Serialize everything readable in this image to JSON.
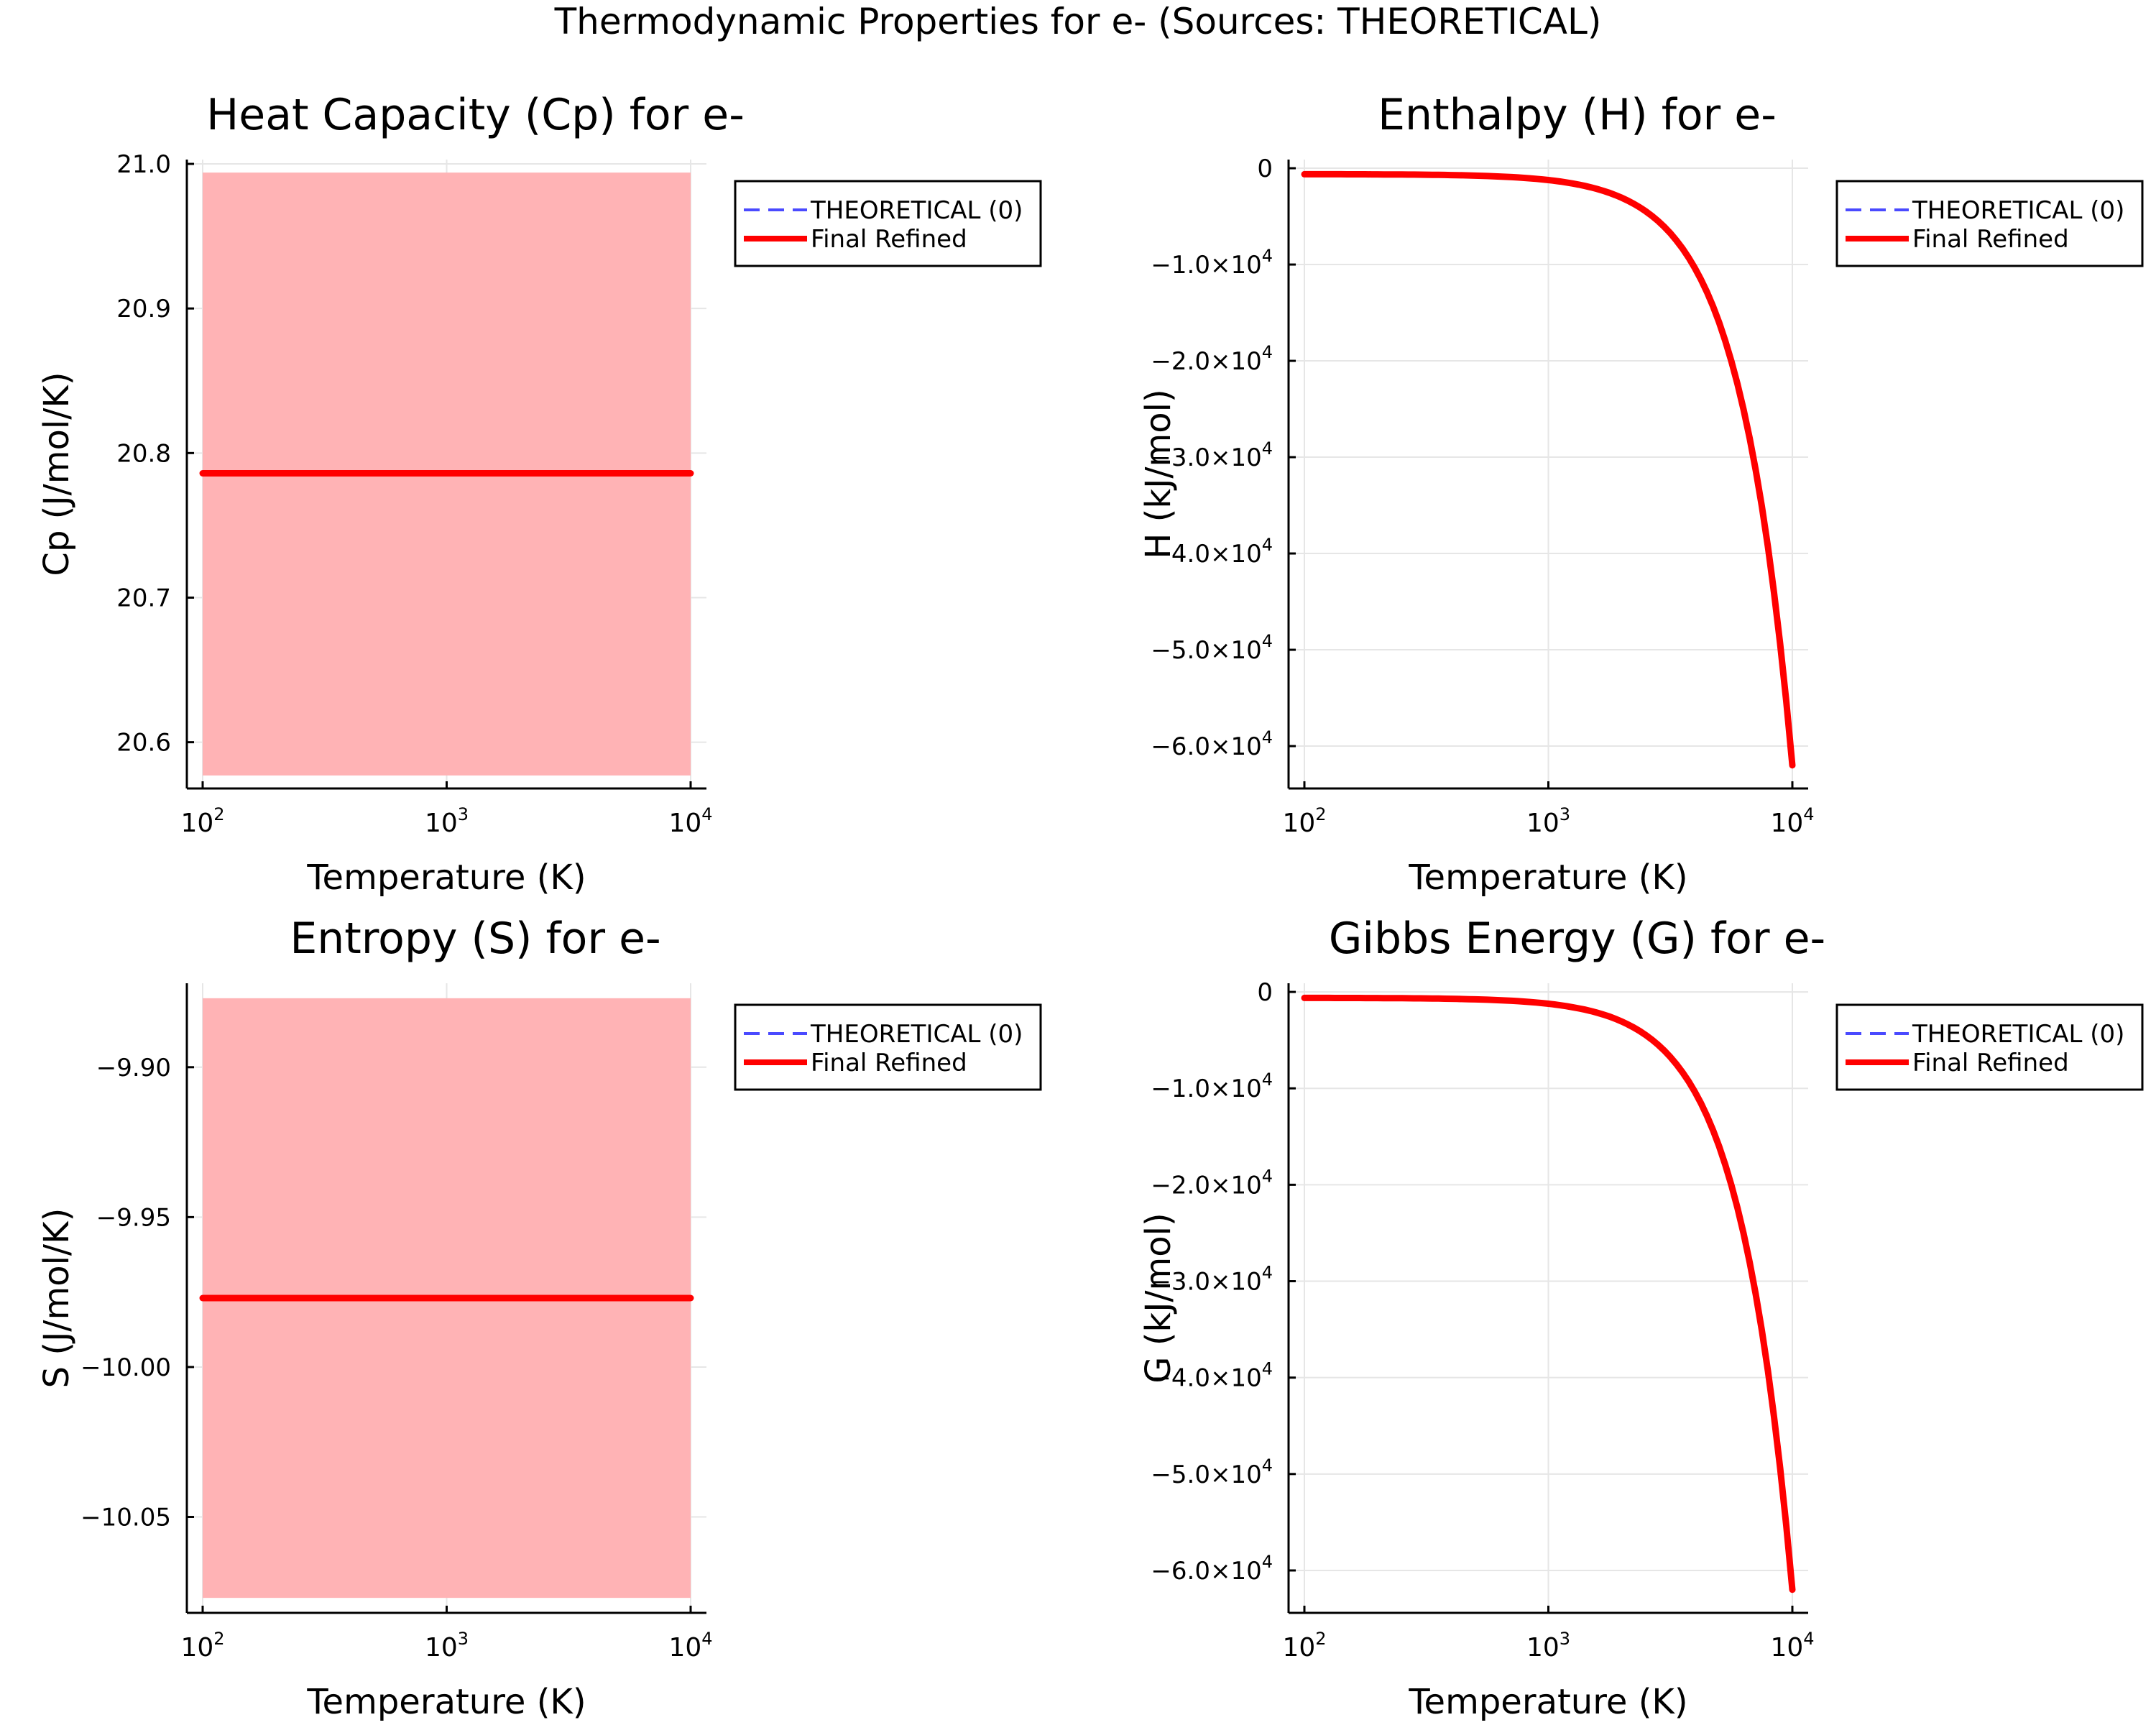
{
  "figure": {
    "suptitle": "Thermodynamic Properties for e- (Sources: THEORETICAL)"
  },
  "chart_data": [
    {
      "type": "line",
      "title": "Heat Capacity (Cp) for e-",
      "xlabel": "Temperature (K)",
      "ylabel": "Cp (J/mol/K)",
      "xscale": "log",
      "xlim": [
        100,
        10000
      ],
      "xticks": [
        {
          "value": 100,
          "base": "10",
          "exp": "2"
        },
        {
          "value": 1000,
          "base": "10",
          "exp": "3"
        },
        {
          "value": 10000,
          "base": "10",
          "exp": "4"
        }
      ],
      "ylim": [
        20.568,
        21.003
      ],
      "yticks": [
        {
          "value": 20.6,
          "label": "20.6"
        },
        {
          "value": 20.7,
          "label": "20.7"
        },
        {
          "value": 20.8,
          "label": "20.8"
        },
        {
          "value": 20.9,
          "label": "20.9"
        },
        {
          "value": 21.0,
          "label": "21.0"
        }
      ],
      "band": {
        "lower": 20.577,
        "upper": 20.994,
        "color": "#ffb3b5"
      },
      "series": [
        {
          "name": "THEORETICAL (0)",
          "color": "#4a4aff",
          "dash": "dashed",
          "x": [
            100,
            10000
          ],
          "y": [
            20.786,
            20.786
          ]
        },
        {
          "name": "Final Refined",
          "color": "#ff0000",
          "dash": "solid",
          "x": [
            100,
            10000
          ],
          "y": [
            20.786,
            20.786
          ]
        }
      ],
      "legend": "top-right outside",
      "grid": true
    },
    {
      "type": "line",
      "title": "Enthalpy (H) for e-",
      "xlabel": "Temperature (K)",
      "ylabel": "H (kJ/mol)",
      "xscale": "log",
      "xlim": [
        100,
        10000
      ],
      "xticks": [
        {
          "value": 100,
          "base": "10",
          "exp": "2"
        },
        {
          "value": 1000,
          "base": "10",
          "exp": "3"
        },
        {
          "value": 10000,
          "base": "10",
          "exp": "4"
        }
      ],
      "ylim": [
        -64400,
        900
      ],
      "yticks": [
        {
          "value": 0,
          "label": "0",
          "exp": ""
        },
        {
          "value": -10000,
          "label": "−1.0×10",
          "exp": "4"
        },
        {
          "value": -20000,
          "label": "−2.0×10",
          "exp": "4"
        },
        {
          "value": -30000,
          "label": "−3.0×10",
          "exp": "4"
        },
        {
          "value": -40000,
          "label": "−4.0×10",
          "exp": "4"
        },
        {
          "value": -50000,
          "label": "−5.0×10",
          "exp": "4"
        },
        {
          "value": -60000,
          "label": "−6.0×10",
          "exp": "4"
        }
      ],
      "series": [
        {
          "name": "THEORETICAL (0)",
          "color": "#4a4aff",
          "dash": "dashed",
          "x": [
            100,
            10000
          ],
          "y": [
            -620,
            -62000
          ]
        },
        {
          "name": "Final Refined",
          "color": "#ff0000",
          "dash": "solid",
          "x": [
            100,
            10000
          ],
          "y": [
            -620,
            -62000
          ]
        }
      ],
      "legend": "top-right outside",
      "grid": true
    },
    {
      "type": "line",
      "title": "Entropy (S) for e-",
      "xlabel": "Temperature (K)",
      "ylabel": "S (J/mol/K)",
      "xscale": "log",
      "xlim": [
        100,
        10000
      ],
      "xticks": [
        {
          "value": 100,
          "base": "10",
          "exp": "2"
        },
        {
          "value": 1000,
          "base": "10",
          "exp": "3"
        },
        {
          "value": 10000,
          "base": "10",
          "exp": "4"
        }
      ],
      "ylim": [
        -10.082,
        -9.872
      ],
      "yticks": [
        {
          "value": -9.9,
          "label": "−9.90"
        },
        {
          "value": -9.95,
          "label": "−9.95"
        },
        {
          "value": -10.0,
          "label": "−10.00"
        },
        {
          "value": -10.05,
          "label": "−10.05"
        }
      ],
      "band": {
        "lower": -10.077,
        "upper": -9.877,
        "color": "#ffb3b5"
      },
      "series": [
        {
          "name": "THEORETICAL (0)",
          "color": "#4a4aff",
          "dash": "dashed",
          "x": [
            100,
            10000
          ],
          "y": [
            -9.977,
            -9.977
          ]
        },
        {
          "name": "Final Refined",
          "color": "#ff0000",
          "dash": "solid",
          "x": [
            100,
            10000
          ],
          "y": [
            -9.977,
            -9.977
          ]
        }
      ],
      "legend": "top-right outside",
      "grid": true
    },
    {
      "type": "line",
      "title": "Gibbs Energy (G) for e-",
      "xlabel": "Temperature (K)",
      "ylabel": "G (kJ/mol)",
      "xscale": "log",
      "xlim": [
        100,
        10000
      ],
      "xticks": [
        {
          "value": 100,
          "base": "10",
          "exp": "2"
        },
        {
          "value": 1000,
          "base": "10",
          "exp": "3"
        },
        {
          "value": 10000,
          "base": "10",
          "exp": "4"
        }
      ],
      "ylim": [
        -64400,
        900
      ],
      "yticks": [
        {
          "value": 0,
          "label": "0",
          "exp": ""
        },
        {
          "value": -10000,
          "label": "−1.0×10",
          "exp": "4"
        },
        {
          "value": -20000,
          "label": "−2.0×10",
          "exp": "4"
        },
        {
          "value": -30000,
          "label": "−3.0×10",
          "exp": "4"
        },
        {
          "value": -40000,
          "label": "−4.0×10",
          "exp": "4"
        },
        {
          "value": -50000,
          "label": "−5.0×10",
          "exp": "4"
        },
        {
          "value": -60000,
          "label": "−6.0×10",
          "exp": "4"
        }
      ],
      "series": [
        {
          "name": "THEORETICAL (0)",
          "color": "#4a4aff",
          "dash": "dashed",
          "x": [
            100,
            10000
          ],
          "y": [
            -620,
            -62000
          ]
        },
        {
          "name": "Final Refined",
          "color": "#ff0000",
          "dash": "solid",
          "x": [
            100,
            10000
          ],
          "y": [
            -620,
            -62000
          ]
        }
      ],
      "legend": "top-right outside",
      "grid": true
    }
  ]
}
